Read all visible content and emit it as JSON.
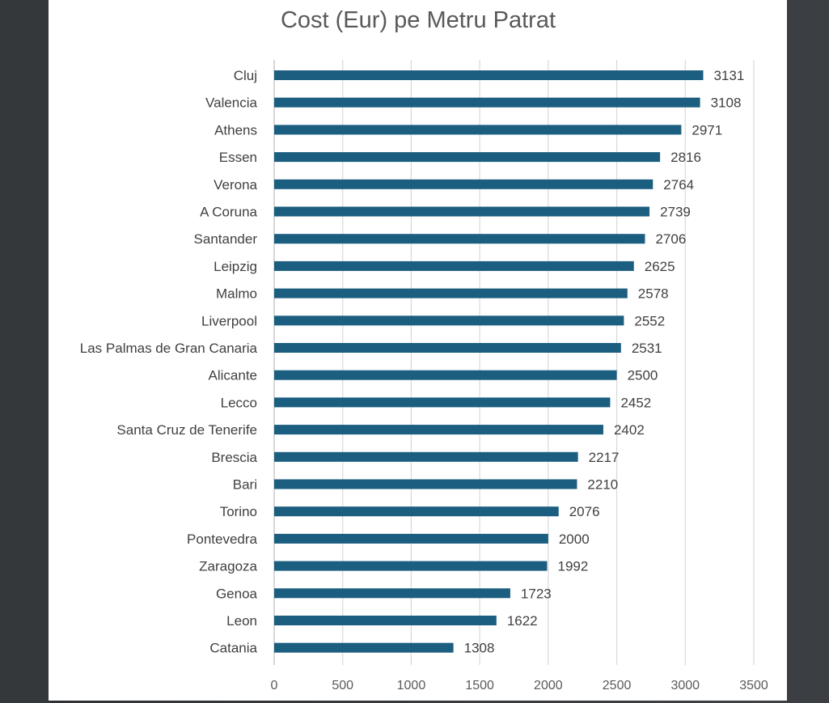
{
  "chart_data": {
    "type": "bar",
    "orientation": "horizontal",
    "title": "Cost (Eur) pe Metru Patrat",
    "categories": [
      "Cluj",
      "Valencia",
      "Athens",
      "Essen",
      "Verona",
      "A Coruna",
      "Santander",
      "Leipzig",
      "Malmo",
      "Liverpool",
      "Las Palmas de Gran Canaria",
      "Alicante",
      "Lecco",
      "Santa Cruz de Tenerife",
      "Brescia",
      "Bari",
      "Torino",
      "Pontevedra",
      "Zaragoza",
      "Genoa",
      "Leon",
      "Catania"
    ],
    "values": [
      3131,
      3108,
      2971,
      2816,
      2764,
      2739,
      2706,
      2625,
      2578,
      2552,
      2531,
      2500,
      2452,
      2402,
      2217,
      2210,
      2076,
      2000,
      1992,
      1723,
      1622,
      1308
    ],
    "xlim": [
      0,
      3500
    ],
    "xticks": [
      0,
      500,
      1000,
      1500,
      2000,
      2500,
      3000,
      3500
    ],
    "grid": "vertical",
    "bar_color": "#1b5e80",
    "data_labels": true
  }
}
